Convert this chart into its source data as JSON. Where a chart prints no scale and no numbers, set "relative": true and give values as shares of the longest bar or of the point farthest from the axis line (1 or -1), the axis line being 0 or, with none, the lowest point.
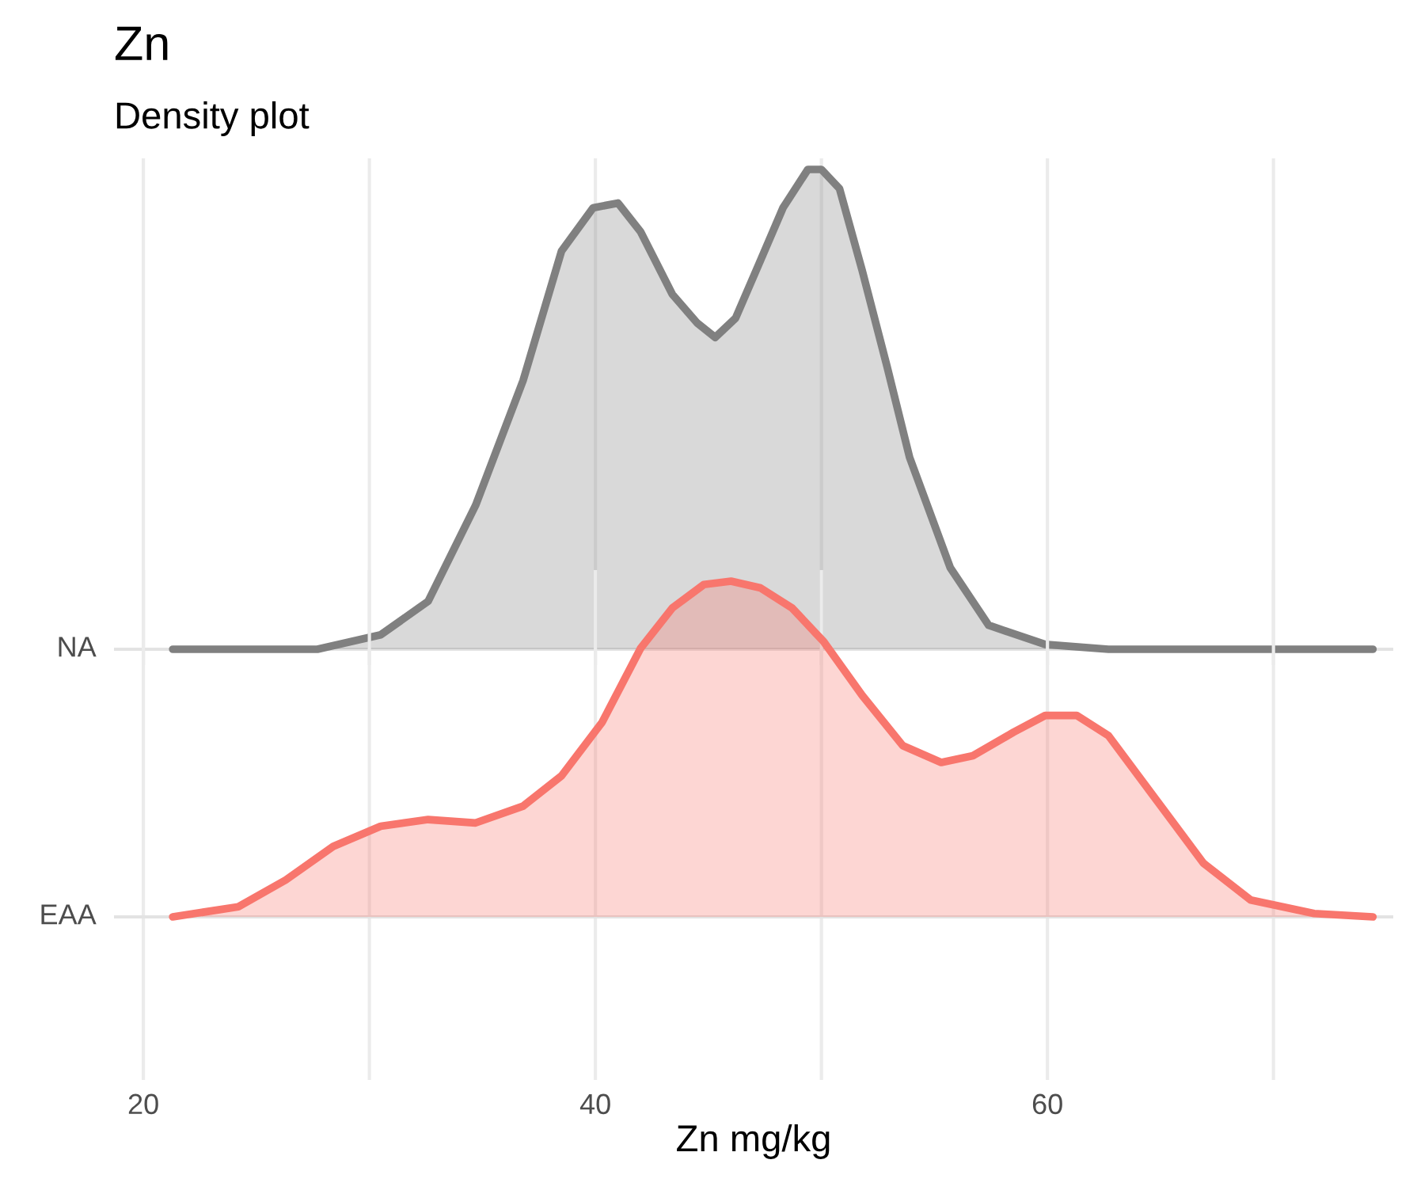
{
  "chart_data": [
    {
      "type": "area",
      "title": "Zn",
      "subtitle": "Density plot",
      "relative": true,
      "legend": false,
      "grid": true,
      "tick_labels": false,
      "xlim": [
        18.7,
        75.3
      ],
      "xticks": [
        20,
        {
          "value": 30,
          "label": null
        },
        40,
        {
          "value": 50,
          "label": null
        },
        60,
        {
          "value": 70,
          "label": null
        }
      ],
      "series": [
        {
          "name": "NA",
          "color": "#808080",
          "x": [
            21.3,
            27.7,
            30.5,
            32.6,
            34.7,
            36.8,
            38.5,
            39.9,
            41.0,
            42.0,
            43.4,
            44.5,
            45.3,
            46.2,
            47.3,
            48.3,
            49.4,
            50.0,
            50.8,
            51.8,
            52.9,
            53.9,
            55.7,
            57.4,
            59.9,
            62.7,
            74.4
          ],
          "values": [
            0,
            0,
            0.03,
            0.1,
            0.3,
            0.56,
            0.83,
            0.92,
            0.93,
            0.87,
            0.74,
            0.68,
            0.65,
            0.69,
            0.81,
            0.92,
            1.0,
            1.0,
            0.96,
            0.79,
            0.59,
            0.4,
            0.17,
            0.05,
            0.01,
            0,
            0
          ]
        }
      ]
    },
    {
      "type": "area",
      "xlabel": "Zn mg/kg",
      "relative": true,
      "legend": false,
      "grid": true,
      "tick_labels": "x",
      "xlim": [
        18.7,
        75.3
      ],
      "xticks": [
        20,
        {
          "value": 30,
          "label": null
        },
        40,
        {
          "value": 50,
          "label": null
        },
        60,
        {
          "value": 70,
          "label": null
        }
      ],
      "series": [
        {
          "name": "EAA",
          "color": "#f8766d",
          "x": [
            21.3,
            24.2,
            26.3,
            28.4,
            30.5,
            32.6,
            34.7,
            36.8,
            38.5,
            40.3,
            42.0,
            43.4,
            44.8,
            46.0,
            47.3,
            48.7,
            50.1,
            51.8,
            53.6,
            55.3,
            56.7,
            58.5,
            59.9,
            61.3,
            62.7,
            64.8,
            66.9,
            69.0,
            71.8,
            74.4
          ],
          "values": [
            0,
            0.03,
            0.11,
            0.21,
            0.27,
            0.29,
            0.28,
            0.33,
            0.42,
            0.58,
            0.8,
            0.92,
            0.99,
            1.0,
            0.98,
            0.92,
            0.82,
            0.66,
            0.51,
            0.46,
            0.48,
            0.55,
            0.6,
            0.6,
            0.54,
            0.35,
            0.16,
            0.05,
            0.01,
            0
          ]
        }
      ]
    }
  ]
}
